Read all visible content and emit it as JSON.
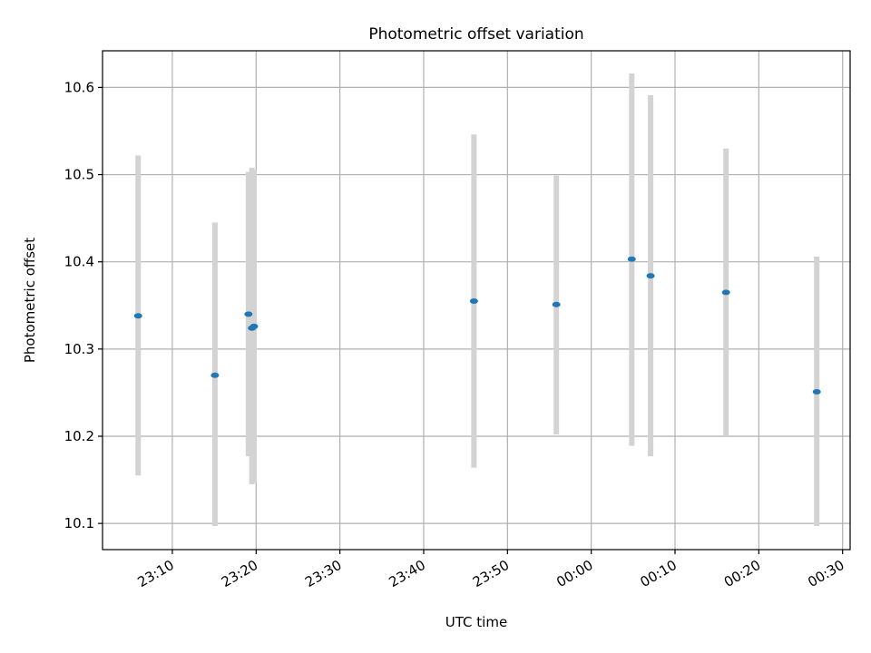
{
  "chart_data": {
    "type": "scatter",
    "title": "Photometric offset variation",
    "xlabel": "UTC time",
    "ylabel": "Photometric offset",
    "x_tick_labels": [
      "23:10",
      "23:20",
      "23:30",
      "23:40",
      "23:50",
      "00:00",
      "00:10",
      "00:20",
      "00:30"
    ],
    "y_tick_labels": [
      "10.1",
      "10.2",
      "10.3",
      "10.4",
      "10.5",
      "10.6"
    ],
    "xlim": [
      "23:01:40",
      "00:30:54"
    ],
    "ylim": [
      10.07,
      10.642
    ],
    "grid": true,
    "series": [
      {
        "points": [
          {
            "x": "23:05:55",
            "y": 10.338,
            "y_low": 10.155,
            "y_high": 10.522
          },
          {
            "x": "23:15:05",
            "y": 10.27,
            "y_low": 10.097,
            "y_high": 10.445
          },
          {
            "x": "23:19:05",
            "y": 10.34,
            "y_low": 10.177,
            "y_high": 10.503
          },
          {
            "x": "23:19:30",
            "y": 10.324,
            "y_low": 10.145,
            "y_high": 10.508
          },
          {
            "x": "23:19:45",
            "y": 10.326,
            "y_low": 10.147,
            "y_high": 10.505
          },
          {
            "x": "23:46:00",
            "y": 10.355,
            "y_low": 10.164,
            "y_high": 10.546
          },
          {
            "x": "23:55:50",
            "y": 10.351,
            "y_low": 10.202,
            "y_high": 10.499
          },
          {
            "x": "00:04:50",
            "y": 10.403,
            "y_low": 10.189,
            "y_high": 10.616
          },
          {
            "x": "00:07:05",
            "y": 10.384,
            "y_low": 10.177,
            "y_high": 10.591
          },
          {
            "x": "00:16:05",
            "y": 10.365,
            "y_low": 10.2,
            "y_high": 10.53
          },
          {
            "x": "00:26:55",
            "y": 10.251,
            "y_low": 10.097,
            "y_high": 10.406
          }
        ]
      }
    ],
    "colors": {
      "point": "#1f77b4",
      "errorbar": "#d3d3d3",
      "grid": "#b0b0b0",
      "axes": "#000000"
    }
  }
}
